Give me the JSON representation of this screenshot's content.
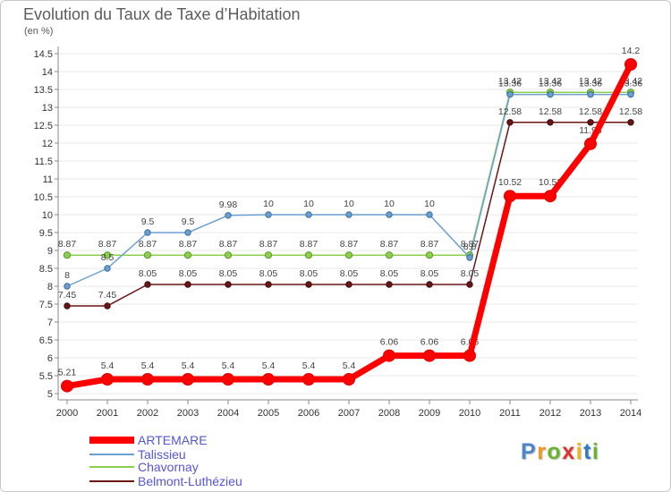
{
  "chart_data": {
    "type": "line",
    "title": "Evolution du Taux de Taxe d’Habitation",
    "subtitle": "(en %)",
    "x": [
      "2000",
      "2001",
      "2002",
      "2003",
      "2004",
      "2005",
      "2006",
      "2007",
      "2008",
      "2009",
      "2010",
      "2011",
      "2012",
      "2013",
      "2014"
    ],
    "ylim": [
      5,
      14.5
    ],
    "yticks": [
      5,
      5.5,
      6,
      6.5,
      7,
      7.5,
      8,
      8.5,
      9,
      9.5,
      10,
      10.5,
      11,
      11.5,
      12,
      12.5,
      13,
      13.5,
      14,
      14.5
    ],
    "grid": true,
    "legend": "bottom-left",
    "series": [
      {
        "name": "ARTEMARE",
        "color": "#ff0000",
        "values": [
          5.21,
          5.4,
          5.4,
          5.4,
          5.4,
          5.4,
          5.4,
          5.4,
          6.06,
          6.06,
          6.06,
          10.52,
          10.52,
          11.98,
          14.2
        ]
      },
      {
        "name": "Talissieu",
        "color": "#6a9fd0",
        "values": [
          8,
          8.5,
          9.5,
          9.5,
          9.98,
          10,
          10,
          10,
          10,
          10,
          8.8,
          13.36,
          13.36,
          13.36,
          13.36
        ]
      },
      {
        "name": "Chavornay",
        "color": "#8ccf4d",
        "values": [
          8.87,
          8.87,
          8.87,
          8.87,
          8.87,
          8.87,
          8.87,
          8.87,
          8.87,
          8.87,
          8.87,
          13.42,
          13.42,
          13.42,
          13.42
        ]
      },
      {
        "name": "Belmont-Luthézieu",
        "color": "#6b1616",
        "values": [
          7.45,
          7.45,
          8.05,
          8.05,
          8.05,
          8.05,
          8.05,
          8.05,
          8.05,
          8.05,
          8.05,
          12.58,
          12.58,
          12.58,
          12.58
        ]
      }
    ]
  },
  "logo": "Proxiti",
  "logo_colors": [
    "#4a86c8",
    "#f39a1e",
    "#6ab42e",
    "#e0302a",
    "#f2b418",
    "#2e7bc4",
    "#6ab42e"
  ]
}
